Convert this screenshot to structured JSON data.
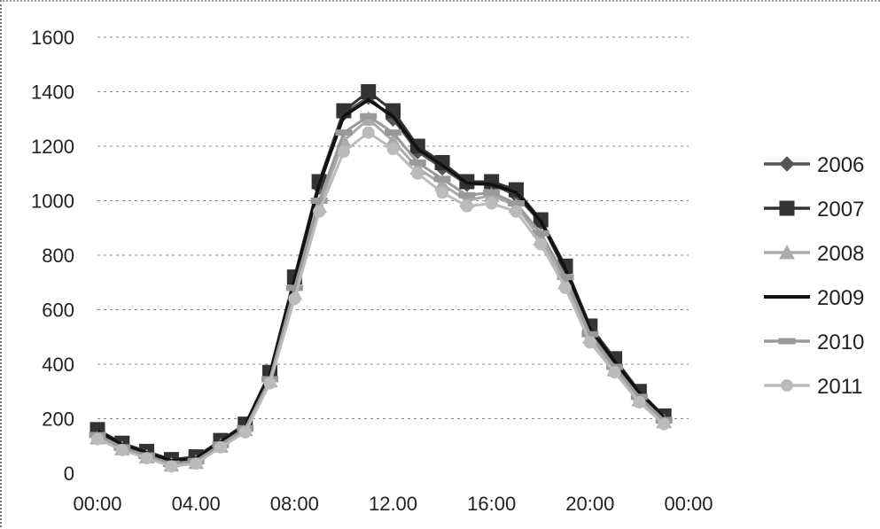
{
  "chart_data": {
    "type": "line",
    "x": [
      "00:00",
      "01:00",
      "02:00",
      "03:00",
      "04:00",
      "05:00",
      "06:00",
      "07:00",
      "08:00",
      "09:00",
      "10:00",
      "11:00",
      "12:00",
      "13:00",
      "14:00",
      "15:00",
      "16:00",
      "17:00",
      "18:00",
      "19:00",
      "20:00",
      "21:00",
      "22:00",
      "23:00"
    ],
    "x_tick_labels": [
      "00:00",
      "04.00",
      "08:00",
      "12.00",
      "16:00",
      "20:00",
      "00:00"
    ],
    "y_tick_labels": [
      "0",
      "200",
      "400",
      "600",
      "800",
      "1000",
      "1200",
      "1400",
      "1600"
    ],
    "ylim": [
      0,
      1600
    ],
    "grid": true,
    "legend_position": "right",
    "series": [
      {
        "name": "2006",
        "color": "#555555",
        "marker": "diamond",
        "values": [
          150,
          100,
          70,
          40,
          50,
          110,
          170,
          350,
          700,
          1050,
          1320,
          1380,
          1300,
          1180,
          1120,
          1060,
          1060,
          1020,
          920,
          740,
          520,
          400,
          290,
          200
        ]
      },
      {
        "name": "2007",
        "color": "#333333",
        "marker": "square",
        "values": [
          160,
          110,
          80,
          50,
          60,
          120,
          180,
          370,
          720,
          1070,
          1330,
          1400,
          1330,
          1200,
          1140,
          1070,
          1070,
          1040,
          930,
          760,
          540,
          420,
          300,
          210
        ]
      },
      {
        "name": "2008",
        "color": "#aaaaaa",
        "marker": "triangle",
        "values": [
          130,
          90,
          60,
          30,
          40,
          100,
          160,
          340,
          660,
          980,
          1220,
          1300,
          1220,
          1120,
          1060,
          1000,
          1020,
          980,
          860,
          700,
          500,
          380,
          270,
          190
        ]
      },
      {
        "name": "2009",
        "color": "#111111",
        "marker": "none",
        "values": [
          155,
          105,
          75,
          45,
          55,
          115,
          175,
          360,
          710,
          1060,
          1310,
          1370,
          1310,
          1190,
          1130,
          1065,
          1060,
          1030,
          925,
          750,
          530,
          410,
          295,
          205
        ]
      },
      {
        "name": "2010",
        "color": "#999999",
        "marker": "dash",
        "values": [
          140,
          95,
          65,
          35,
          45,
          105,
          165,
          345,
          680,
          1000,
          1250,
          1310,
          1250,
          1140,
          1080,
          1020,
          1030,
          990,
          880,
          720,
          510,
          390,
          280,
          195
        ]
      },
      {
        "name": "2011",
        "color": "#bbbbbb",
        "marker": "circle",
        "values": [
          125,
          85,
          55,
          25,
          35,
          95,
          150,
          330,
          640,
          960,
          1180,
          1250,
          1190,
          1100,
          1030,
          980,
          990,
          960,
          840,
          680,
          480,
          370,
          260,
          180
        ]
      }
    ]
  }
}
